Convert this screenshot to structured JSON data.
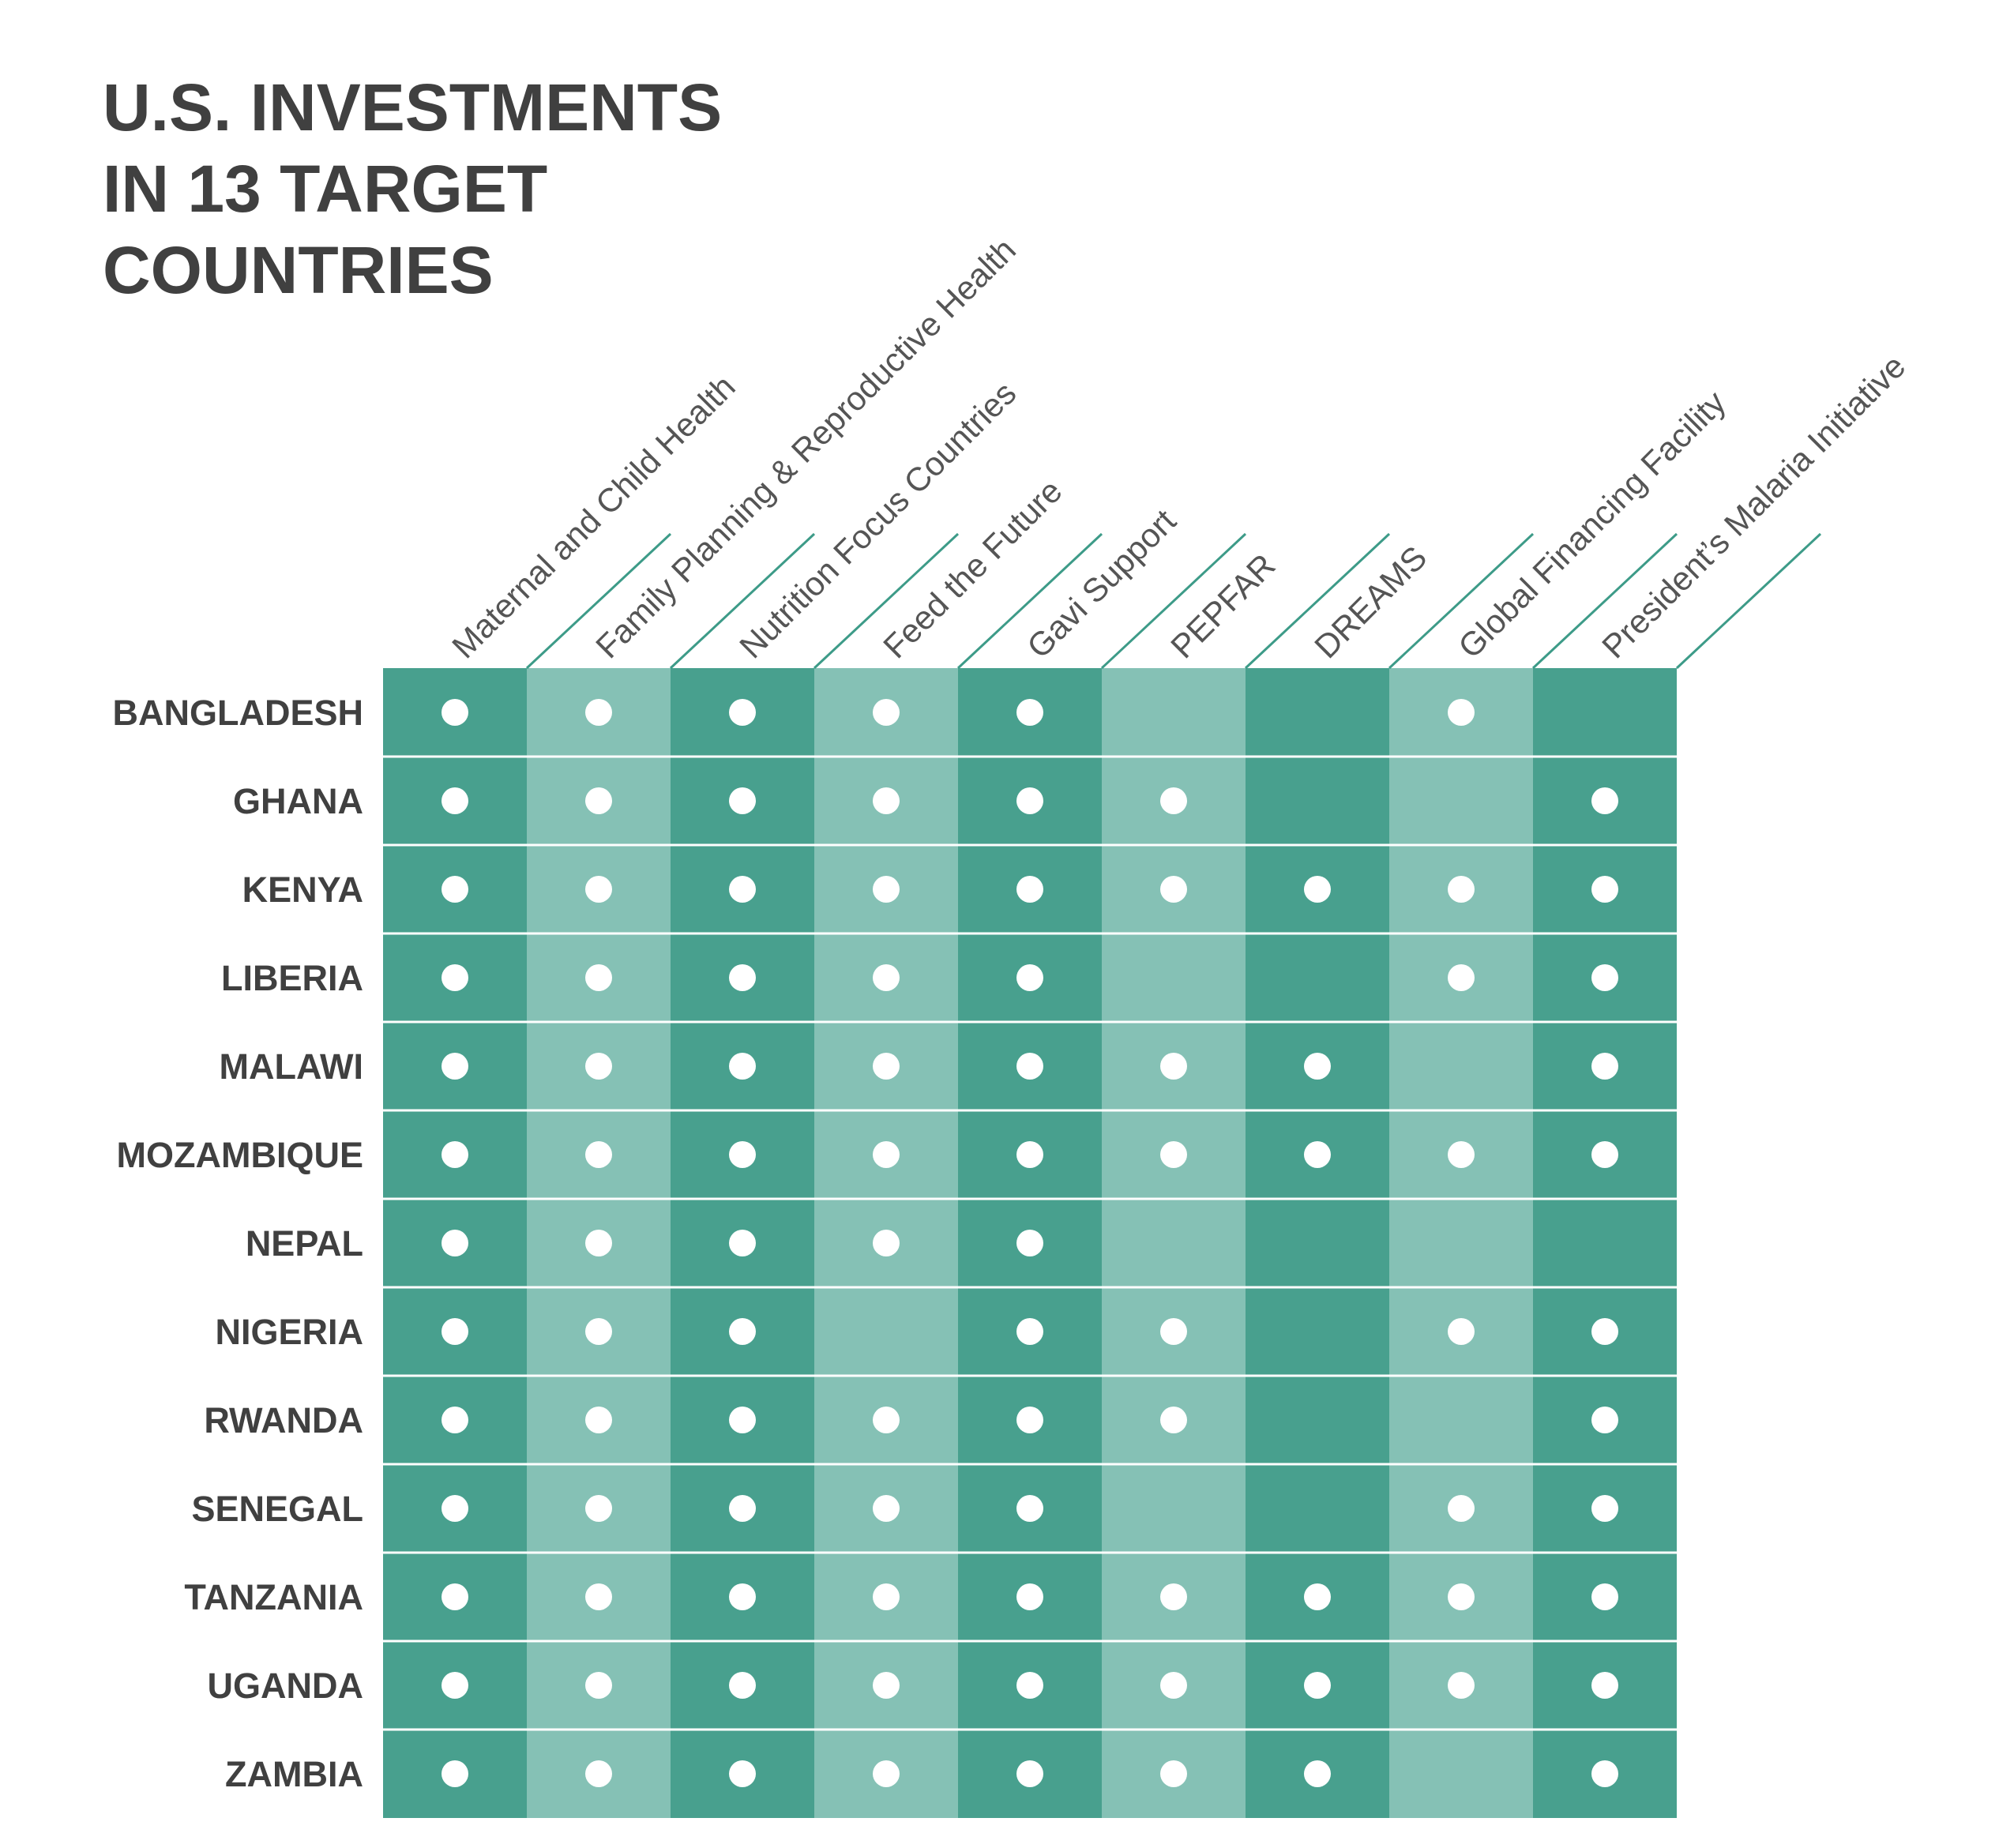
{
  "title_lines": [
    "U.S. INVESTMENTS",
    "IN 13 TARGET",
    "COUNTRIES"
  ],
  "colors": {
    "dark_column": "#48a08e",
    "light_column": "#85c1b5",
    "dot": "#ffffff",
    "title_text": "#404040",
    "label_text": "#555555",
    "header_line": "#3d9b88"
  },
  "chart_data": {
    "type": "table",
    "title": "U.S. INVESTMENTS IN 13 TARGET COUNTRIES",
    "columns": [
      "Maternal and Child Health",
      "Family Planning & Reproductive Health",
      "Nutrition Focus Countries",
      "Feed the Future",
      "Gavi Support",
      "PEPFAR",
      "DREAMS",
      "Global Financing Facility",
      "President’s Malaria Initiative"
    ],
    "rows": [
      {
        "country": "BANGLADESH",
        "values": [
          1,
          1,
          1,
          1,
          1,
          0,
          0,
          1,
          0
        ]
      },
      {
        "country": "GHANA",
        "values": [
          1,
          1,
          1,
          1,
          1,
          1,
          0,
          0,
          1
        ]
      },
      {
        "country": "KENYA",
        "values": [
          1,
          1,
          1,
          1,
          1,
          1,
          1,
          1,
          1
        ]
      },
      {
        "country": "LIBERIA",
        "values": [
          1,
          1,
          1,
          1,
          1,
          0,
          0,
          1,
          1
        ]
      },
      {
        "country": "MALAWI",
        "values": [
          1,
          1,
          1,
          1,
          1,
          1,
          1,
          0,
          1
        ]
      },
      {
        "country": "MOZAMBIQUE",
        "values": [
          1,
          1,
          1,
          1,
          1,
          1,
          1,
          1,
          1
        ]
      },
      {
        "country": "NEPAL",
        "values": [
          1,
          1,
          1,
          1,
          1,
          0,
          0,
          0,
          0
        ]
      },
      {
        "country": "NIGERIA",
        "values": [
          1,
          1,
          1,
          0,
          1,
          1,
          0,
          1,
          1
        ]
      },
      {
        "country": "RWANDA",
        "values": [
          1,
          1,
          1,
          1,
          1,
          1,
          0,
          0,
          1
        ]
      },
      {
        "country": "SENEGAL",
        "values": [
          1,
          1,
          1,
          1,
          1,
          0,
          0,
          1,
          1
        ]
      },
      {
        "country": "TANZANIA",
        "values": [
          1,
          1,
          1,
          1,
          1,
          1,
          1,
          1,
          1
        ]
      },
      {
        "country": "UGANDA",
        "values": [
          1,
          1,
          1,
          1,
          1,
          1,
          1,
          1,
          1
        ]
      },
      {
        "country": "ZAMBIA",
        "values": [
          1,
          1,
          1,
          1,
          1,
          1,
          1,
          0,
          1
        ]
      }
    ]
  }
}
